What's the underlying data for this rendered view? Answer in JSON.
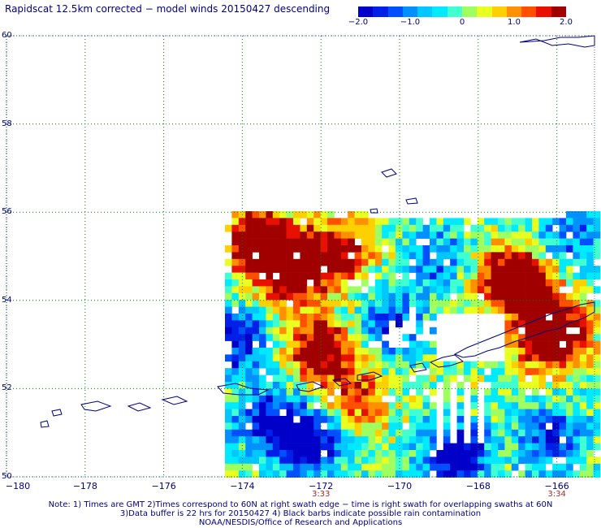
{
  "title": "Rapidscat 12.5km corrected − model winds 20150427 descending",
  "colorbar": {
    "ticks": [
      "−2.0",
      "−1.0",
      "0",
      "1.0",
      "2.0"
    ],
    "tick_values": [
      -2.0,
      -1.0,
      0,
      1.0,
      2.0
    ],
    "range": [
      -2.0,
      2.0
    ],
    "colors": [
      "#0000c8",
      "#0020e8",
      "#0050ff",
      "#0090ff",
      "#00c8ff",
      "#00eaff",
      "#40ffd0",
      "#a0ff60",
      "#e8ff20",
      "#ffd000",
      "#ff9000",
      "#ff5000",
      "#e81000",
      "#a00000"
    ]
  },
  "axes": {
    "y_labels": [
      "60",
      "58",
      "56",
      "54",
      "52",
      "50"
    ],
    "y_values": [
      60,
      58,
      56,
      54,
      52,
      50
    ],
    "x_labels": [
      "−180",
      "−178",
      "−176",
      "−174",
      "−172",
      "−170",
      "−168",
      "−166"
    ],
    "x_values": [
      -180,
      -178,
      -176,
      -174,
      -172,
      -170,
      -168,
      -166
    ],
    "lon_range": [
      -180,
      -165
    ],
    "lat_range": [
      50,
      60
    ],
    "grid_color": "#008000"
  },
  "swath_times": [
    {
      "label": "3:33",
      "lon": -172
    },
    {
      "label": "3:34",
      "lon": -166
    }
  ],
  "notes": {
    "line1": "Note: 1) Times are GMT 2)Times correspond to 60N at right swath edge − time is right swath for overlapping swaths at 60N",
    "line2": "3)Data buffer is 22 hrs for 20150427 4) Black barbs indicate possible rain contamination",
    "line3": "NOAA/NESDIS/Office of Research and Applications"
  },
  "colors": {
    "text": "#000080",
    "time_label": "#a52a2a",
    "coastline": "#000080"
  }
}
